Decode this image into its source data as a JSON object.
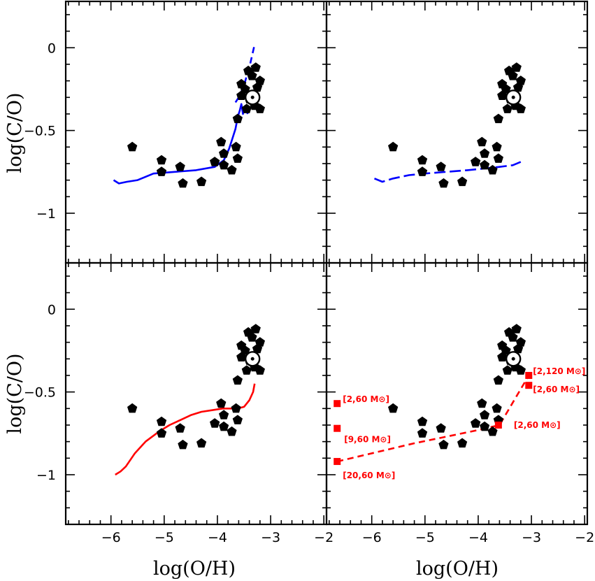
{
  "chart_data": {
    "type": "scatter",
    "layout": "2x2 panels sharing axes",
    "xlabel": "log(O/H)",
    "ylabel": "log(C/O)",
    "xlim": [
      -6.85,
      -1.95
    ],
    "ylim": [
      -1.3,
      0.28
    ],
    "xticks": [
      -6,
      -5,
      -4,
      -3,
      -2
    ],
    "xtick_labels": [
      "−6",
      "−5",
      "−4",
      "−3",
      "−2"
    ],
    "yticks": [
      0,
      -0.5,
      -1
    ],
    "ytick_labels": [
      "0",
      "−0.5",
      "−1"
    ],
    "grid": false,
    "observations": {
      "marker": "pentagon",
      "color": "#000000",
      "points": [
        [
          -5.6,
          -0.6
        ],
        [
          -5.05,
          -0.68
        ],
        [
          -5.05,
          -0.75
        ],
        [
          -4.7,
          -0.72
        ],
        [
          -4.65,
          -0.82
        ],
        [
          -4.3,
          -0.81
        ],
        [
          -4.05,
          -0.69
        ],
        [
          -3.93,
          -0.57
        ],
        [
          -3.88,
          -0.64
        ],
        [
          -3.88,
          -0.71
        ],
        [
          -3.73,
          -0.74
        ],
        [
          -3.65,
          -0.6
        ],
        [
          -3.62,
          -0.67
        ],
        [
          -3.62,
          -0.43
        ],
        [
          -3.45,
          -0.37
        ],
        [
          -3.4,
          -0.31
        ],
        [
          -3.3,
          -0.35
        ],
        [
          -3.2,
          -0.37
        ],
        [
          -3.48,
          -0.25
        ],
        [
          -3.55,
          -0.22
        ],
        [
          -3.42,
          -0.14
        ],
        [
          -3.35,
          -0.17
        ],
        [
          -3.25,
          -0.24
        ],
        [
          -3.2,
          -0.2
        ],
        [
          -3.28,
          -0.12
        ],
        [
          -3.55,
          -0.29
        ]
      ]
    },
    "sun": {
      "symbol": "sun-symbol",
      "x": -3.34,
      "y": -0.3
    },
    "panels": [
      {
        "id": "top-left",
        "series": [
          {
            "style": "solid",
            "color": "#0000ff",
            "x": [
              -5.95,
              -5.85,
              -5.7,
              -5.5,
              -5.2,
              -4.8,
              -4.4,
              -4.05,
              -3.88,
              -3.78,
              -3.72,
              -3.66,
              -3.63,
              -3.62
            ],
            "y": [
              -0.8,
              -0.82,
              -0.81,
              -0.8,
              -0.76,
              -0.75,
              -0.74,
              -0.72,
              -0.68,
              -0.61,
              -0.55,
              -0.49,
              -0.44,
              -0.42
            ]
          },
          {
            "style": "solid",
            "color": "#0000ff",
            "x": [
              -3.62,
              -3.58,
              -3.55,
              -3.52,
              -3.48,
              -3.43
            ],
            "y": [
              -0.42,
              -0.38,
              -0.34,
              -0.4,
              -0.36,
              -0.4
            ]
          },
          {
            "style": "dashed",
            "color": "#0000ff",
            "x": [
              -3.66,
              -3.6,
              -3.5,
              -3.45,
              -3.4,
              -3.35,
              -3.3
            ],
            "y": [
              -0.33,
              -0.3,
              -0.23,
              -0.17,
              -0.12,
              -0.05,
              0.02
            ]
          }
        ]
      },
      {
        "id": "top-right",
        "series": [
          {
            "style": "long-dashed",
            "color": "#0000ff",
            "x": [
              -5.95,
              -5.8,
              -5.6,
              -5.3,
              -5.0,
              -4.6,
              -4.2,
              -3.9,
              -3.6,
              -3.35,
              -3.2
            ],
            "y": [
              -0.79,
              -0.81,
              -0.79,
              -0.77,
              -0.76,
              -0.75,
              -0.74,
              -0.73,
              -0.72,
              -0.71,
              -0.69
            ]
          }
        ]
      },
      {
        "id": "bottom-left",
        "series": [
          {
            "style": "solid",
            "color": "#ff0000",
            "x": [
              -5.92,
              -5.82,
              -5.72,
              -5.55,
              -5.35,
              -5.1,
              -4.9,
              -4.7,
              -4.5,
              -4.3,
              -4.1,
              -3.9,
              -3.75,
              -3.62,
              -3.5,
              -3.4,
              -3.33,
              -3.3
            ],
            "y": [
              -1.0,
              -0.98,
              -0.95,
              -0.87,
              -0.8,
              -0.74,
              -0.7,
              -0.67,
              -0.64,
              -0.62,
              -0.61,
              -0.6,
              -0.6,
              -0.6,
              -0.59,
              -0.55,
              -0.5,
              -0.45
            ]
          }
        ]
      },
      {
        "id": "bottom-right",
        "series": [
          {
            "style": "dashed",
            "color": "#ff0000",
            "x": [
              -6.65,
              -5.2,
              -4.0,
              -3.6,
              -3.05
            ],
            "y": [
              -0.92,
              -0.81,
              -0.73,
              -0.7,
              -0.4
            ]
          }
        ],
        "squares": [
          {
            "x": -6.65,
            "y": -0.57,
            "label": "[2,60 M⊙]"
          },
          {
            "x": -6.65,
            "y": -0.72,
            "label": "[9,60 M⊙]"
          },
          {
            "x": -6.65,
            "y": -0.92,
            "label": "[20,60 M⊙]"
          },
          {
            "x": -3.62,
            "y": -0.7,
            "label": "[2,60 M⊙]"
          },
          {
            "x": -3.05,
            "y": -0.4,
            "label": "[2,120 M⊙]"
          },
          {
            "x": -3.05,
            "y": -0.46,
            "label": "[2,60 M⊙]"
          }
        ]
      }
    ]
  }
}
